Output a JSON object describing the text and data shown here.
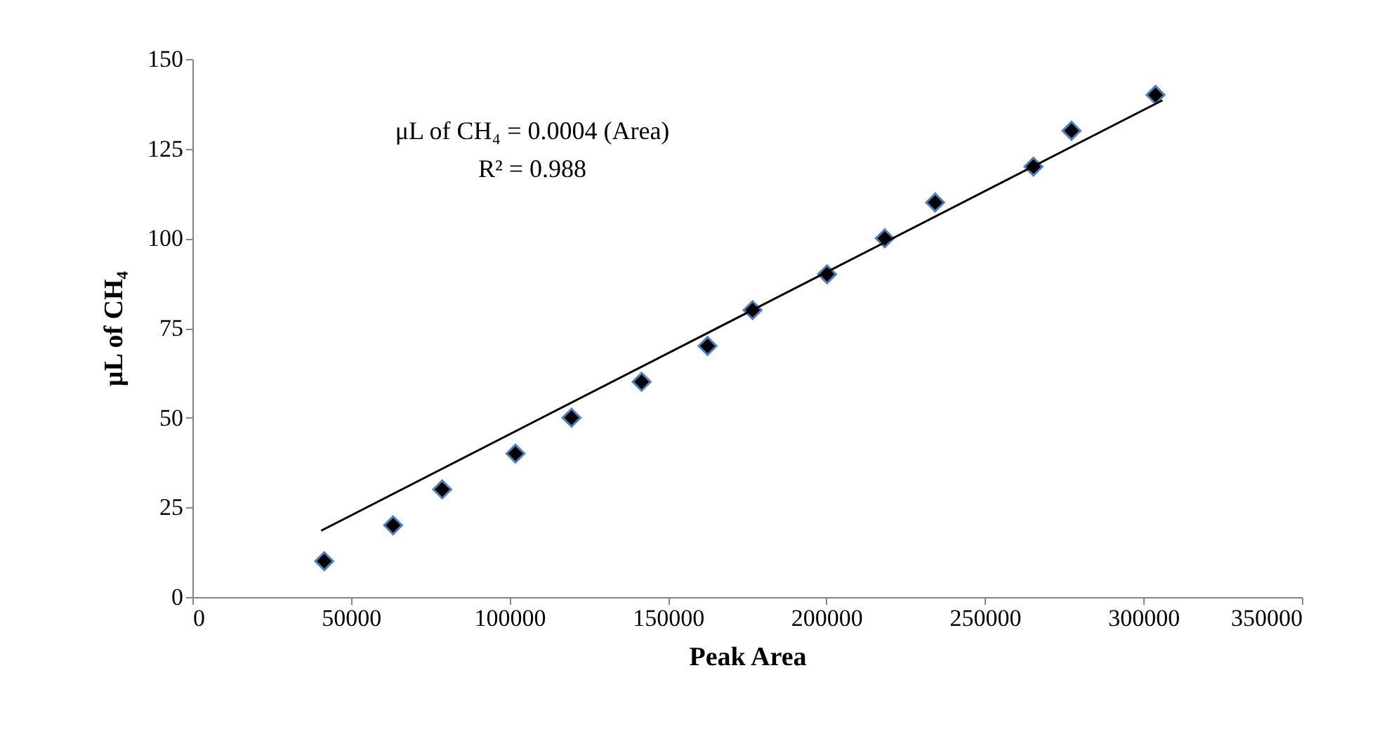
{
  "chart_data": {
    "type": "scatter",
    "xlabel": "Peak Area",
    "ylabel": "μL of CH₄",
    "annotations": [
      "μL of CH₄ = 0.0004 (Area)",
      "R² = 0.988"
    ],
    "xlim": [
      0,
      350000
    ],
    "xticks": [
      0,
      50000,
      100000,
      150000,
      200000,
      250000,
      300000,
      350000
    ],
    "ylim": [
      0,
      150
    ],
    "yticks": [
      0,
      25,
      50,
      75,
      100,
      125,
      150
    ],
    "grid": false,
    "marker": "diamond",
    "series": [
      {
        "type": "scatter",
        "color": "#000000",
        "x": [
          41600,
          63300,
          78800,
          101900,
          119600,
          141700,
          162500,
          176700,
          200200,
          218400,
          234300,
          265300,
          277300,
          303800
        ],
        "values": [
          10,
          20,
          30,
          40,
          50,
          60,
          70,
          80,
          90,
          100,
          110,
          120,
          130,
          140
        ]
      },
      {
        "type": "line",
        "color": "#000000",
        "marker": "none",
        "line_style": "solid",
        "x": [
          40600,
          306000
        ],
        "values": [
          18.5,
          138.5
        ]
      }
    ]
  }
}
